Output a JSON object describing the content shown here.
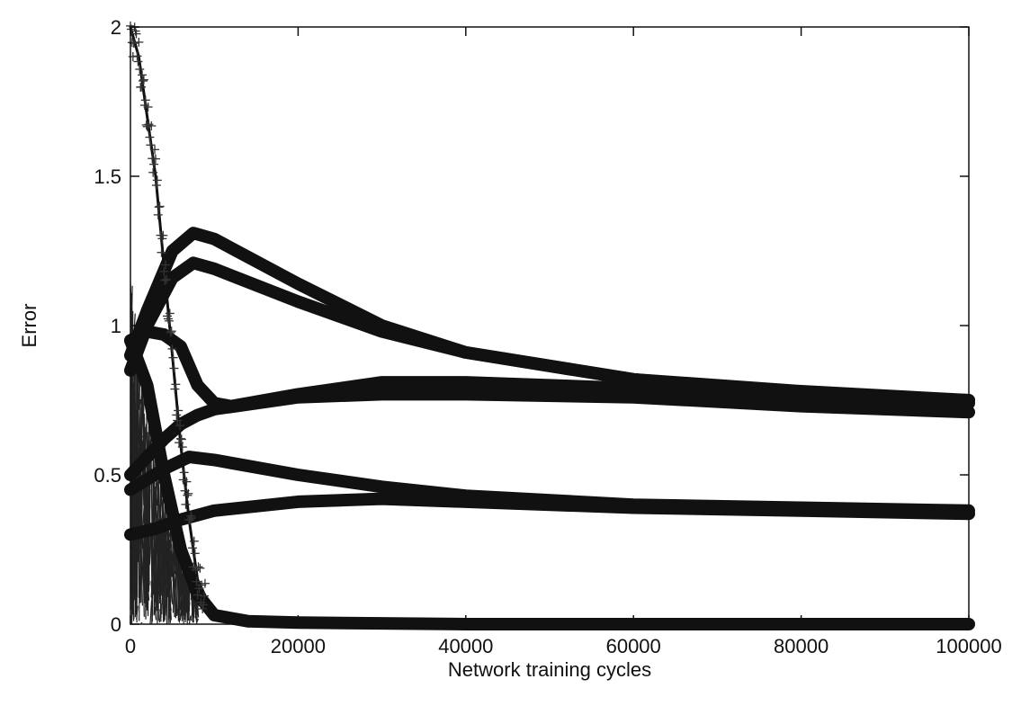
{
  "chart_data": {
    "type": "line",
    "title": "",
    "xlabel": "Network training cycles",
    "ylabel": "Error",
    "xlim": [
      0,
      100000
    ],
    "ylim": [
      0,
      2
    ],
    "x_ticks": [
      0,
      20000,
      40000,
      60000,
      80000,
      100000
    ],
    "x_tick_labels": [
      "0",
      "20000",
      "40000",
      "60000",
      "80000",
      "100000"
    ],
    "y_ticks": [
      0,
      0.5,
      1,
      1.5,
      2
    ],
    "y_tick_labels": [
      "0",
      "0.5",
      "1",
      "1.5",
      "2"
    ],
    "grid": false,
    "legend": "none",
    "marker": "+",
    "series": [
      {
        "x": [
          0,
          2000,
          5000,
          7500,
          10000,
          20000,
          30000,
          40000,
          60000,
          80000,
          100000
        ],
        "y": [
          0.9,
          1.05,
          1.25,
          1.31,
          1.29,
          1.14,
          1.0,
          0.91,
          0.82,
          0.77,
          0.74
        ]
      },
      {
        "x": [
          0,
          2000,
          5000,
          7500,
          10000,
          20000,
          30000,
          40000,
          60000,
          80000,
          100000
        ],
        "y": [
          0.85,
          1.0,
          1.16,
          1.21,
          1.19,
          1.08,
          0.98,
          0.91,
          0.82,
          0.78,
          0.75
        ]
      },
      {
        "x": [
          0,
          2000,
          4000,
          6000,
          8000,
          10000,
          12000,
          20000,
          30000,
          40000,
          60000,
          80000,
          100000
        ],
        "y": [
          0.95,
          0.98,
          0.97,
          0.93,
          0.8,
          0.74,
          0.73,
          0.77,
          0.81,
          0.81,
          0.79,
          0.77,
          0.75
        ]
      },
      {
        "x": [
          0,
          2000,
          4000,
          6000,
          8000,
          10000,
          20000,
          30000,
          40000,
          60000,
          80000,
          100000
        ],
        "y": [
          0.5,
          0.56,
          0.62,
          0.67,
          0.7,
          0.72,
          0.76,
          0.77,
          0.77,
          0.76,
          0.73,
          0.71
        ]
      },
      {
        "x": [
          0,
          4000,
          7000,
          10000,
          20000,
          30000,
          40000,
          60000,
          80000,
          100000
        ],
        "y": [
          0.45,
          0.52,
          0.56,
          0.55,
          0.5,
          0.46,
          0.43,
          0.4,
          0.39,
          0.38
        ]
      },
      {
        "x": [
          0,
          3000,
          6000,
          10000,
          20000,
          30000,
          40000,
          60000,
          80000,
          100000
        ],
        "y": [
          0.3,
          0.32,
          0.35,
          0.38,
          0.41,
          0.42,
          0.41,
          0.39,
          0.38,
          0.37
        ]
      },
      {
        "x": [
          0,
          2000,
          4000,
          6000,
          8000,
          10000,
          14000,
          20000,
          40000,
          60000,
          80000,
          100000
        ],
        "y": [
          0.95,
          0.8,
          0.5,
          0.25,
          0.1,
          0.03,
          0.01,
          0.005,
          0.0,
          0.0,
          0.0,
          0.0
        ]
      },
      {
        "x": [
          0,
          1000,
          2000,
          3000,
          4000,
          5000,
          6000,
          7000,
          8000,
          10000
        ],
        "y": [
          2.0,
          1.9,
          1.7,
          1.5,
          1.2,
          0.9,
          0.6,
          0.35,
          0.15,
          0.03
        ]
      }
    ]
  }
}
